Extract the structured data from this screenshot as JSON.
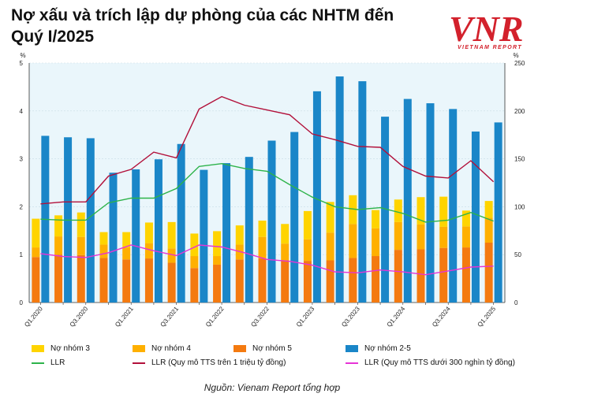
{
  "title": "Nợ xấu và trích lập dự phòng của các NHTM đến Quý I/2025",
  "logo": {
    "mark": "VNR",
    "sub": "VIETNAM REPORT"
  },
  "source": "Nguồn: Vienam Report tổng hợp",
  "colors": {
    "plot_bg": "#eaf6fb",
    "nhom3": "#ffd400",
    "nhom4": "#ffb000",
    "nhom5": "#f47a10",
    "nhom25": "#1a86c8",
    "llr": "#2db34a",
    "llr_big": "#b2103a",
    "llr_small": "#e633d6",
    "brand": "#d3212c"
  },
  "chart_data": {
    "type": "bar",
    "y_left_unit": "%",
    "y_right_unit": "%",
    "y_left_range": [
      0,
      5
    ],
    "y_left_ticks": [
      "0",
      "1",
      "2",
      "3",
      "4",
      "5"
    ],
    "y_right_range": [
      0,
      250
    ],
    "y_right_ticks": [
      "0",
      "50",
      "100",
      "150",
      "200",
      "250"
    ],
    "x_tick_labels": [
      "Q1.2020",
      "Q3.2020",
      "Q1.2021",
      "Q3.2021",
      "Q1.2022",
      "Q3.2022",
      "Q1.2023",
      "Q3.2023",
      "Q1.2024",
      "Q3.2024",
      "Q1.2025"
    ],
    "x_tick_positions": [
      0,
      2,
      4,
      6,
      8,
      10,
      12,
      14,
      16,
      18,
      20
    ],
    "categories": [
      "Q1.2020",
      "Q2.2020",
      "Q3.2020",
      "Q4.2020",
      "Q1.2021",
      "Q2.2021",
      "Q3.2021",
      "Q4.2021",
      "Q1.2022",
      "Q2.2022",
      "Q3.2022",
      "Q4.2022",
      "Q1.2023",
      "Q2.2023",
      "Q3.2023",
      "Q4.2023",
      "Q1.2024",
      "Q2.2024",
      "Q3.2024",
      "Q4.2024",
      "Q1.2025"
    ],
    "legend": {
      "nhom3": "Nợ nhóm 3",
      "nhom4": "Nợ nhóm 4",
      "nhom5": "Nợ nhóm 5",
      "nhom25": "Nợ nhóm 2-5",
      "llr": "LLR",
      "llr_big": "LLR (Quy mô TTS trên 1 triệu tỷ đồng)",
      "llr_small": "LLR (Quy mô TTS dưới 300 nghìn tỷ đồng)"
    },
    "stacked_total_npl": [
      1.75,
      1.82,
      1.88,
      1.47,
      1.47,
      1.67,
      1.68,
      1.44,
      1.49,
      1.61,
      1.71,
      1.64,
      1.91,
      2.1,
      2.24,
      1.93,
      2.15,
      2.2,
      2.21,
      1.92,
      2.12
    ],
    "nhom5": [
      0.95,
      1.0,
      0.99,
      0.93,
      0.9,
      0.92,
      0.83,
      0.72,
      0.79,
      0.9,
      0.92,
      0.88,
      0.87,
      0.88,
      0.93,
      0.97,
      1.1,
      1.11,
      1.14,
      1.15,
      1.25
    ],
    "nhom4": [
      0.2,
      0.38,
      0.38,
      0.28,
      0.25,
      0.32,
      0.3,
      0.25,
      0.18,
      0.31,
      0.45,
      0.35,
      0.45,
      0.58,
      0.71,
      0.58,
      0.58,
      0.52,
      0.44,
      0.44,
      0.52
    ],
    "nhom3": [
      0.6,
      0.44,
      0.51,
      0.26,
      0.32,
      0.43,
      0.55,
      0.47,
      0.52,
      0.4,
      0.34,
      0.41,
      0.59,
      0.64,
      0.6,
      0.38,
      0.47,
      0.57,
      0.63,
      0.33,
      0.35
    ],
    "nhom25": [
      3.48,
      3.45,
      3.43,
      2.71,
      2.78,
      2.99,
      3.31,
      2.77,
      2.91,
      3.04,
      3.38,
      3.56,
      4.41,
      4.72,
      4.62,
      3.88,
      4.25,
      4.16,
      4.04,
      3.57,
      3.76
    ],
    "llr": [
      87,
      86,
      86,
      104,
      109,
      109,
      119,
      142,
      145,
      140,
      137,
      123,
      110,
      100,
      97,
      99,
      93,
      84,
      86,
      94,
      85
    ],
    "llr_big": [
      103,
      105,
      105,
      132,
      139,
      157,
      151,
      202,
      215,
      206,
      201,
      196,
      176,
      170,
      163,
      162,
      142,
      132,
      130,
      148,
      126
    ],
    "llr_small": [
      51,
      48,
      47,
      52,
      60,
      54,
      49,
      60,
      58,
      52,
      45,
      43,
      39,
      32,
      31,
      34,
      32,
      29,
      33,
      37,
      38
    ]
  }
}
